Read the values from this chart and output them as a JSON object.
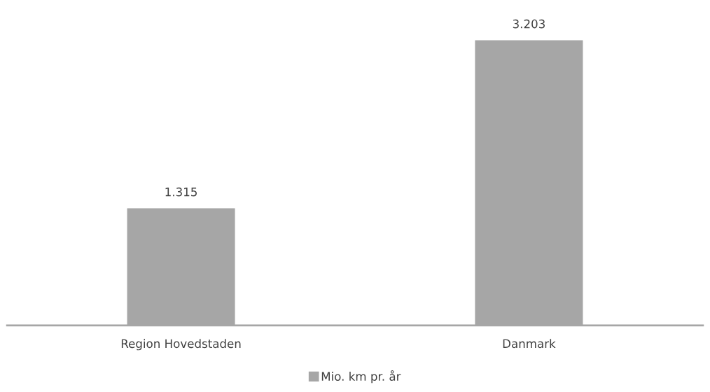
{
  "chart_data": {
    "type": "bar",
    "categories": [
      "Region Hovedstaden",
      "Danmark"
    ],
    "series": [
      {
        "name": "Mio. km pr. år",
        "color": "#a6a6a6",
        "values": [
          1.315,
          3.203
        ]
      }
    ],
    "data_labels": true,
    "legend": "bottom"
  }
}
